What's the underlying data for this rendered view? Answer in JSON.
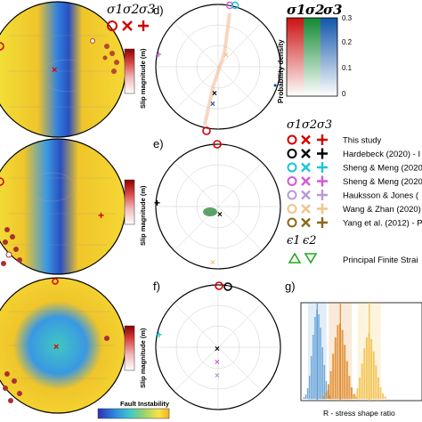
{
  "panels": {
    "d": "d)",
    "e": "e)",
    "f": "f)",
    "g": "g)"
  },
  "sigma_labels": [
    "σ1",
    "σ2",
    "σ3"
  ],
  "epsilon_labels": [
    "ϵ1",
    "ϵ2"
  ],
  "slip_colorbar": {
    "label": "Slip magnitude (m)",
    "colors": [
      "#ffffff",
      "#f2b9b9",
      "#d94444",
      "#8b0000"
    ]
  },
  "fault_instability": {
    "label": "Fault Instability",
    "colors": [
      "#2b2fb6",
      "#2f8de0",
      "#40c8c8",
      "#9bd36a",
      "#f7e34a",
      "#f2b21c"
    ]
  },
  "density_colorbar": {
    "label": "Probability density",
    "ticks": [
      "0",
      "0.1",
      "0.2",
      "0.3"
    ],
    "colors": {
      "sigma1": "#cc1111",
      "sigma2": "#118833",
      "sigma3": "#1155aa"
    }
  },
  "legend": {
    "items": [
      {
        "label": "This study",
        "color": "#d40000"
      },
      {
        "label": "Hardebeck (2020) - I",
        "color": "#000000"
      },
      {
        "label": "Sheng & Meng (2020",
        "color": "#19c6d6"
      },
      {
        "label": "Sheng & Meng (2020",
        "color": "#d25ad6"
      },
      {
        "label": "Hauksson & Jones (",
        "color": "#b79ad8"
      },
      {
        "label": "Wang & Zhan (2020) -",
        "color": "#f2c38a"
      },
      {
        "label": "Yang et al. (2012) - P",
        "color": "#8a6a1a"
      }
    ],
    "strain_label": "Principal Finite Strai",
    "strain_color": "#22aa22"
  },
  "chart_data": {
    "type": "histogram",
    "panel": "g)",
    "xlabel": "R - stress shape ratio",
    "xlim": [
      0,
      1
    ],
    "series": [
      {
        "color": "#5b9bd5",
        "center": 0.11,
        "spread": 0.04,
        "peak": 1.0
      },
      {
        "color": "#e08a2a",
        "center": 0.31,
        "spread": 0.05,
        "peak": 0.92
      },
      {
        "color": "#f2c04a",
        "center": 0.56,
        "spread": 0.05,
        "peak": 0.86
      }
    ],
    "bins": {
      "blue": [
        0.02,
        0.05,
        0.12,
        0.26,
        0.48,
        0.72,
        0.92,
        1.0,
        0.95,
        0.8,
        0.58,
        0.38,
        0.2,
        0.1,
        0.04
      ],
      "orange": [
        0.03,
        0.08,
        0.18,
        0.34,
        0.55,
        0.75,
        0.9,
        0.92,
        0.84,
        0.66,
        0.46,
        0.28,
        0.14,
        0.06,
        0.02
      ],
      "yellow": [
        0.02,
        0.06,
        0.14,
        0.28,
        0.46,
        0.66,
        0.8,
        0.86,
        0.78,
        0.62,
        0.44,
        0.28,
        0.15,
        0.07,
        0.03
      ]
    }
  }
}
